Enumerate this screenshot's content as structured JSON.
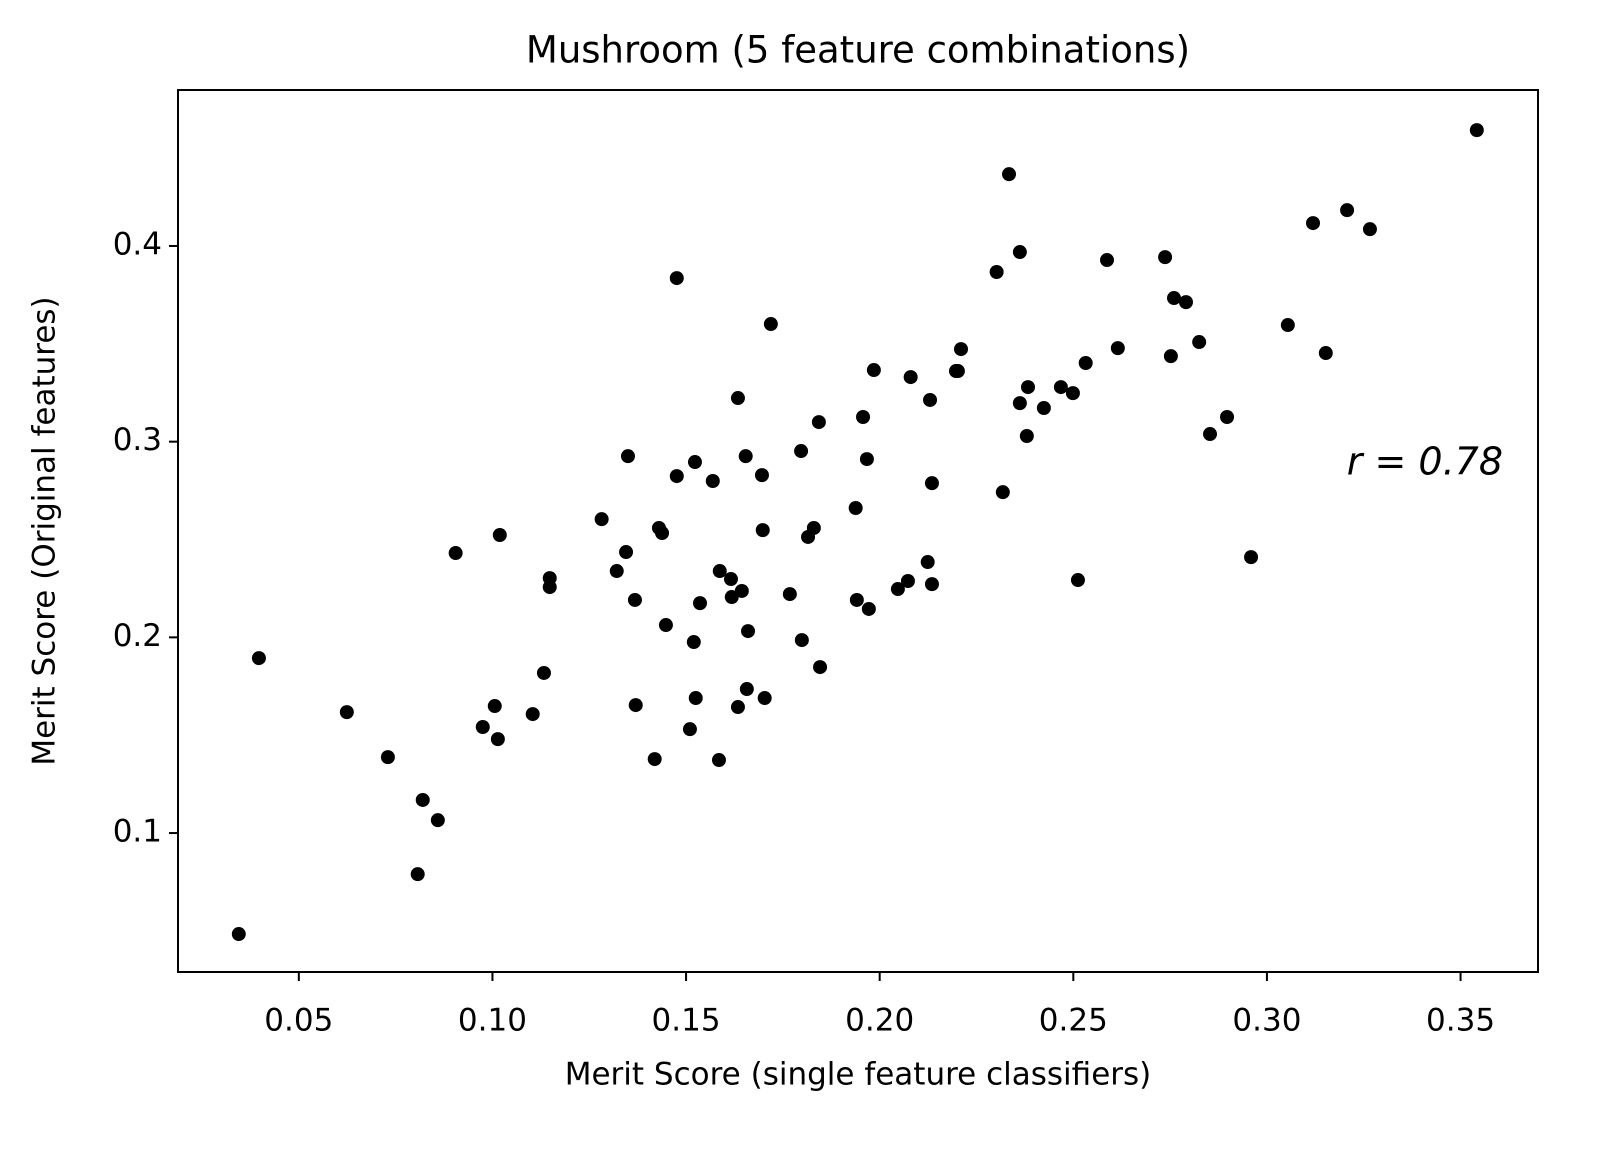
{
  "chart_data": {
    "type": "scatter",
    "title": "Mushroom (5 feature combinations)",
    "x_label": "Merit Score (single feature classifiers)",
    "y_label": "Merit Score (Original features)",
    "annotation": "r = 0.78",
    "color": "#000000",
    "xlim": [
      0.0188,
      0.37
    ],
    "ylim": [
      0.029,
      0.4797
    ],
    "xticks": [
      0.05,
      {
        "value": 0.1,
        "label": "0.10"
      },
      0.15,
      {
        "value": 0.2,
        "label": "0.20"
      },
      0.25,
      {
        "value": 0.3,
        "label": "0.30"
      },
      0.35
    ],
    "yticks": [
      0.1,
      0.2,
      0.3,
      0.4
    ],
    "x": [
      0.3542,
      0.2334,
      0.3207,
      0.3119,
      0.3266,
      0.2737,
      0.1476,
      0.2362,
      0.2587,
      0.2302,
      0.276,
      0.2791,
      0.1719,
      0.3054,
      0.3152,
      0.2825,
      0.2752,
      0.221,
      0.2615,
      0.2532,
      0.1985,
      0.208,
      0.2197,
      0.2202,
      0.2383,
      0.2468,
      0.2499,
      0.2362,
      0.2424,
      0.213,
      0.1634,
      0.1957,
      0.1843,
      0.2897,
      0.2853,
      0.238,
      0.135,
      0.1523,
      0.1967,
      0.1654,
      0.1476,
      0.1569,
      0.1696,
      0.1797,
      0.2135,
      0.2318,
      0.1282,
      0.143,
      0.1438,
      0.1698,
      0.183,
      0.1938,
      0.1815,
      0.1019,
      0.0905,
      0.1345,
      0.1321,
      0.1587,
      0.1616,
      0.1148,
      0.1148,
      0.1368,
      0.1536,
      0.1644,
      0.1618,
      0.1768,
      0.1941,
      0.1972,
      0.2047,
      0.2073,
      0.2124,
      0.2135,
      0.2512,
      0.2959,
      0.1448,
      0.166,
      0.152,
      0.1799,
      0.1846,
      0.1133,
      0.0624,
      0.1006,
      0.1104,
      0.0975,
      0.1014,
      0.137,
      0.1525,
      0.1657,
      0.1703,
      0.1634,
      0.151,
      0.1419,
      0.1585,
      0.073,
      0.082,
      0.0859,
      0.0807,
      0.0345,
      0.0397
    ],
    "y": [
      0.4592,
      0.4367,
      0.4183,
      0.4117,
      0.4086,
      0.3943,
      0.3836,
      0.3969,
      0.3928,
      0.3867,
      0.3734,
      0.3713,
      0.3601,
      0.3596,
      0.3453,
      0.3509,
      0.3437,
      0.3473,
      0.3478,
      0.3402,
      0.3366,
      0.333,
      0.3361,
      0.3361,
      0.3279,
      0.3279,
      0.3248,
      0.3197,
      0.3172,
      0.3213,
      0.3223,
      0.3126,
      0.31,
      0.3126,
      0.3039,
      0.3029,
      0.2926,
      0.2896,
      0.2911,
      0.2926,
      0.2824,
      0.2799,
      0.2829,
      0.2952,
      0.2788,
      0.2742,
      0.2604,
      0.2559,
      0.2533,
      0.2548,
      0.2559,
      0.2661,
      0.2513,
      0.2523,
      0.2431,
      0.2436,
      0.2339,
      0.2339,
      0.2298,
      0.2303,
      0.2257,
      0.2191,
      0.2175,
      0.2237,
      0.2206,
      0.2221,
      0.2191,
      0.2145,
      0.2247,
      0.2288,
      0.2385,
      0.2272,
      0.2293,
      0.241,
      0.2063,
      0.2032,
      0.1976,
      0.1986,
      0.1848,
      0.1818,
      0.1618,
      0.1649,
      0.1608,
      0.1542,
      0.148,
      0.1654,
      0.169,
      0.1736,
      0.169,
      0.1644,
      0.1531,
      0.1378,
      0.1373,
      0.1388,
      0.1169,
      0.1066,
      0.079,
      0.0484,
      0.1894
    ]
  }
}
